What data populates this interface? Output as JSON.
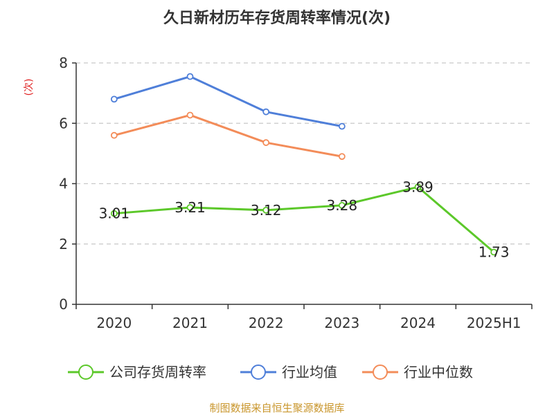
{
  "chart_data": {
    "type": "line",
    "title": "久日新材历年存货周转率情况(次)",
    "ylabel": "(次)",
    "xlabel": "",
    "categories": [
      "2020",
      "2021",
      "2022",
      "2023",
      "2024",
      "2025H1"
    ],
    "ylim": [
      0,
      8
    ],
    "yticks": [
      0,
      2,
      4,
      6,
      8
    ],
    "grid": true,
    "legend_position": "bottom",
    "series": [
      {
        "name": "公司存货周转率",
        "color": "#5cc82a",
        "values": [
          3.01,
          3.21,
          3.12,
          3.28,
          3.89,
          1.73
        ],
        "labels": [
          "3.01",
          "3.21",
          "3.12",
          "3.28",
          "3.89",
          "1.73"
        ],
        "show_labels": true
      },
      {
        "name": "行业均值",
        "color": "#4f7fd9",
        "values": [
          6.8,
          7.55,
          6.38,
          5.9,
          null,
          null
        ],
        "show_labels": false
      },
      {
        "name": "行业中位数",
        "color": "#f38c59",
        "values": [
          5.6,
          6.27,
          5.36,
          4.9,
          null,
          null
        ],
        "show_labels": false
      }
    ]
  },
  "source": "制图数据来自恒生聚源数据库"
}
